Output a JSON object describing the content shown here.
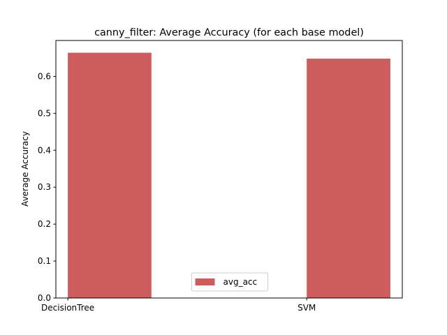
{
  "chart_data": {
    "type": "bar",
    "title": "canny_filter: Average Accuracy (for each base model)",
    "xlabel": "",
    "ylabel": "Average Accuracy",
    "categories": [
      "DecisionTree",
      "SVM"
    ],
    "series": [
      {
        "name": "avg_acc",
        "values": [
          0.664,
          0.648
        ],
        "color": "#cd5c5c"
      }
    ],
    "ylim": [
      0,
      0.6972
    ],
    "yticks": [
      0.0,
      0.1,
      0.2,
      0.3,
      0.4,
      0.5,
      0.6
    ],
    "ytick_labels": [
      "0.0",
      "0.1",
      "0.2",
      "0.3",
      "0.4",
      "0.5",
      "0.6"
    ],
    "grid": false,
    "legend_position": "lower center"
  }
}
